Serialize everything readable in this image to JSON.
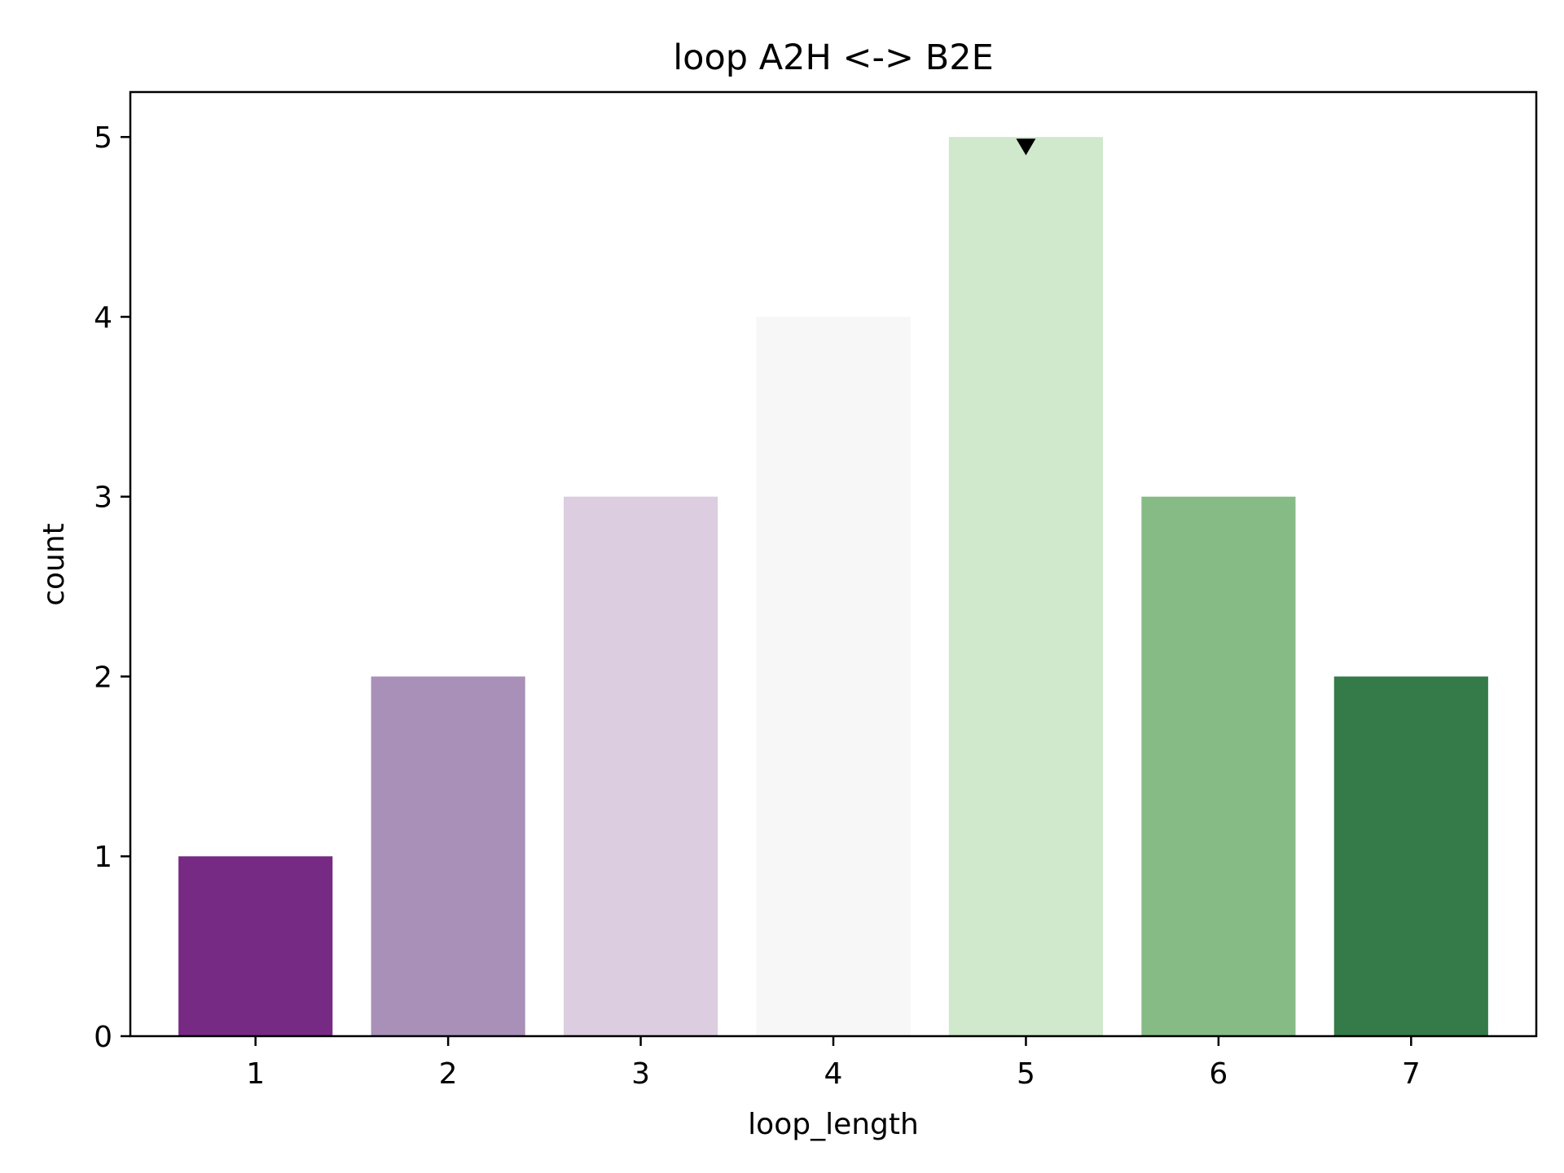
{
  "chart_data": {
    "type": "bar",
    "title": "loop A2H <-> B2E",
    "xlabel": "loop_length",
    "ylabel": "count",
    "categories": [
      "1",
      "2",
      "3",
      "4",
      "5",
      "6",
      "7"
    ],
    "values": [
      1,
      2,
      3,
      4,
      5,
      3,
      2
    ],
    "colors": [
      "#762a83",
      "#a990b8",
      "#dccde0",
      "#f7f7f7",
      "#d0e8cc",
      "#86bb86",
      "#357a49"
    ],
    "ylim": [
      0,
      5.25
    ],
    "yticks": [
      0,
      1,
      2,
      3,
      4,
      5
    ],
    "grid": false,
    "legend": "none",
    "marker": {
      "type": "down-triangle",
      "category": "5",
      "value": 5,
      "color": "#000000"
    }
  }
}
